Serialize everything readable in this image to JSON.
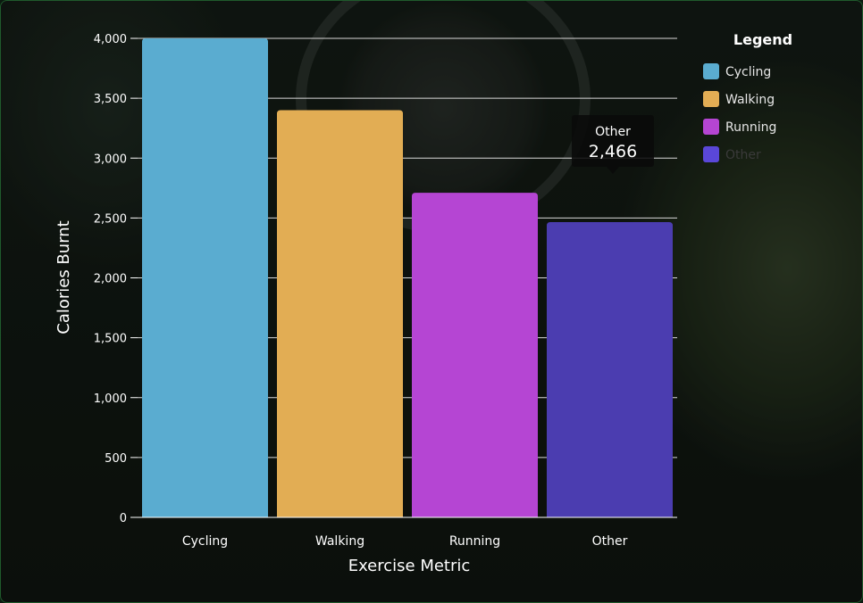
{
  "chart_data": {
    "type": "bar",
    "title": "",
    "xlabel": "Exercise Metric",
    "ylabel": "Calories Burnt",
    "categories": [
      "Cycling",
      "Walking",
      "Running",
      "Other"
    ],
    "values": [
      4000,
      3400,
      2710,
      2466
    ],
    "colors": [
      "#5aacd0",
      "#e2ad54",
      "#b545d3",
      "#4b3db0"
    ],
    "ylim": [
      0,
      4000
    ],
    "yticks": [
      0,
      500,
      1000,
      1500,
      2000,
      2500,
      3000,
      3500,
      4000
    ],
    "ytick_labels": [
      "0",
      "500",
      "1,000",
      "1,500",
      "2,000",
      "2,500",
      "3,000",
      "3,500",
      "4,000"
    ],
    "grid": true,
    "legend": {
      "title": "Legend",
      "position": "right",
      "items": [
        {
          "label": "Cycling",
          "color": "#5aacd0",
          "active": true
        },
        {
          "label": "Walking",
          "color": "#e2ad54",
          "active": true
        },
        {
          "label": "Running",
          "color": "#b545d3",
          "active": true
        },
        {
          "label": "Other",
          "color": "#5a47d8",
          "active": false
        }
      ]
    },
    "tooltip": {
      "category": "Other",
      "value_label": "2,466"
    }
  }
}
